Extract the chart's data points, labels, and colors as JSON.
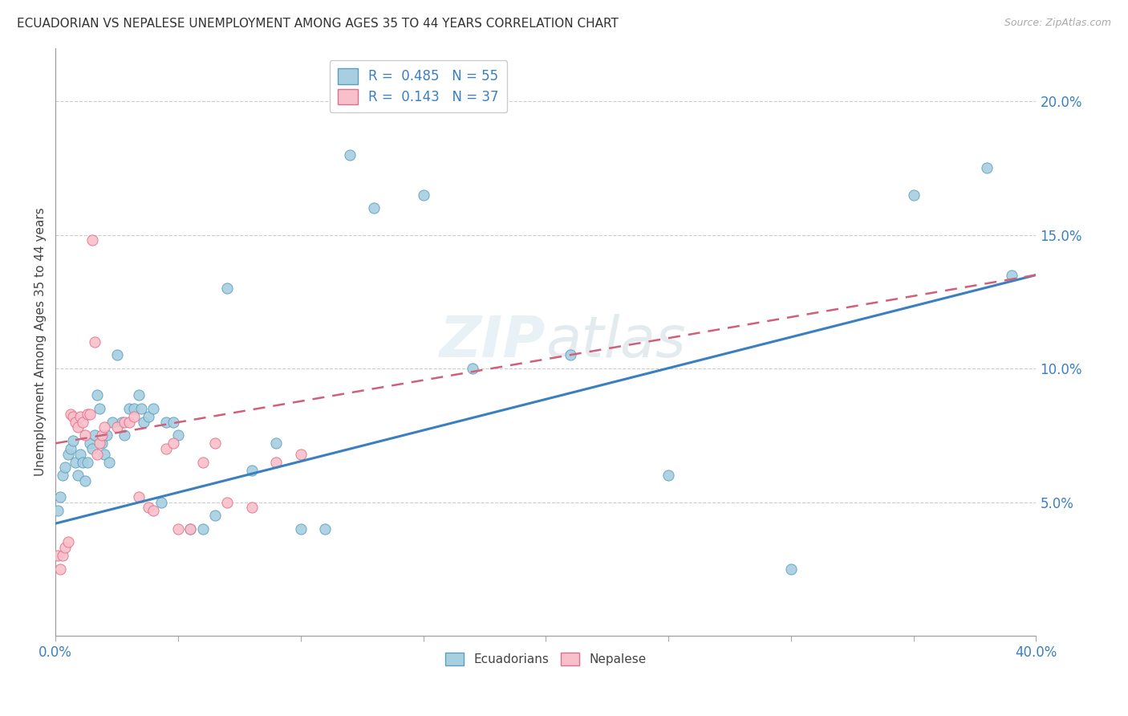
{
  "title": "ECUADORIAN VS NEPALESE UNEMPLOYMENT AMONG AGES 35 TO 44 YEARS CORRELATION CHART",
  "source": "Source: ZipAtlas.com",
  "ylabel": "Unemployment Among Ages 35 to 44 years",
  "ecuadorians": {
    "scatter_color": "#a8cfe0",
    "scatter_edge": "#5a9fc0",
    "line_color": "#3a7fbf",
    "R": 0.485,
    "N": 55,
    "x": [
      0.001,
      0.002,
      0.003,
      0.004,
      0.005,
      0.006,
      0.007,
      0.008,
      0.009,
      0.01,
      0.011,
      0.012,
      0.013,
      0.014,
      0.015,
      0.016,
      0.017,
      0.018,
      0.019,
      0.02,
      0.021,
      0.022,
      0.023,
      0.025,
      0.027,
      0.028,
      0.03,
      0.032,
      0.034,
      0.035,
      0.036,
      0.038,
      0.04,
      0.043,
      0.045,
      0.048,
      0.05,
      0.055,
      0.06,
      0.065,
      0.07,
      0.08,
      0.09,
      0.1,
      0.11,
      0.12,
      0.13,
      0.15,
      0.17,
      0.21,
      0.25,
      0.3,
      0.35,
      0.38,
      0.39
    ],
    "y": [
      0.047,
      0.052,
      0.06,
      0.063,
      0.068,
      0.07,
      0.073,
      0.065,
      0.06,
      0.068,
      0.065,
      0.058,
      0.065,
      0.072,
      0.07,
      0.075,
      0.09,
      0.085,
      0.072,
      0.068,
      0.075,
      0.065,
      0.08,
      0.105,
      0.08,
      0.075,
      0.085,
      0.085,
      0.09,
      0.085,
      0.08,
      0.082,
      0.085,
      0.05,
      0.08,
      0.08,
      0.075,
      0.04,
      0.04,
      0.045,
      0.13,
      0.062,
      0.072,
      0.04,
      0.04,
      0.18,
      0.16,
      0.165,
      0.1,
      0.105,
      0.06,
      0.025,
      0.165,
      0.175,
      0.135
    ]
  },
  "nepalese": {
    "scatter_color": "#f9c0cb",
    "scatter_edge": "#e0708a",
    "line_color": "#d0607a",
    "R": 0.143,
    "N": 37,
    "x": [
      0.001,
      0.002,
      0.003,
      0.004,
      0.005,
      0.006,
      0.007,
      0.008,
      0.009,
      0.01,
      0.011,
      0.012,
      0.013,
      0.014,
      0.015,
      0.016,
      0.017,
      0.018,
      0.019,
      0.02,
      0.025,
      0.028,
      0.03,
      0.032,
      0.034,
      0.038,
      0.04,
      0.045,
      0.048,
      0.05,
      0.055,
      0.06,
      0.065,
      0.07,
      0.08,
      0.09,
      0.1
    ],
    "y": [
      0.03,
      0.025,
      0.03,
      0.033,
      0.035,
      0.083,
      0.082,
      0.08,
      0.078,
      0.082,
      0.08,
      0.075,
      0.083,
      0.083,
      0.148,
      0.11,
      0.068,
      0.072,
      0.075,
      0.078,
      0.078,
      0.08,
      0.08,
      0.082,
      0.052,
      0.048,
      0.047,
      0.07,
      0.072,
      0.04,
      0.04,
      0.065,
      0.072,
      0.05,
      0.048,
      0.065,
      0.068
    ]
  },
  "xlim": [
    0.0,
    0.4
  ],
  "ylim": [
    0.0,
    0.22
  ],
  "background_color": "#ffffff",
  "watermark": "ZIPatlas",
  "xticks": [
    0.0,
    0.05,
    0.1,
    0.15,
    0.2,
    0.25,
    0.3,
    0.35,
    0.4
  ],
  "xtick_labels": [
    "0.0%",
    "",
    "",
    "",
    "",
    "",
    "",
    "",
    "40.0%"
  ],
  "yticks_right": [
    0.05,
    0.1,
    0.15,
    0.2
  ],
  "ytick_right_labels": [
    "5.0%",
    "10.0%",
    "15.0%",
    "20.0%"
  ],
  "ecu_line_start_y": 0.042,
  "ecu_line_end_y": 0.135,
  "nep_line_start_y": 0.072,
  "nep_line_end_y": 0.135
}
